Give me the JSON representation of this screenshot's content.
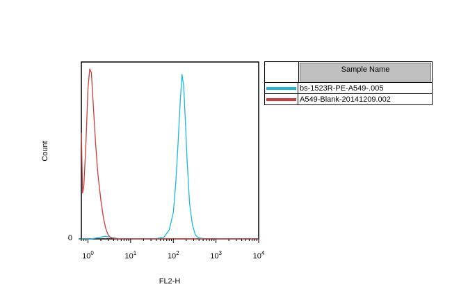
{
  "chart_data": {
    "type": "line",
    "xlabel": "FL2-H",
    "ylabel": "Count",
    "x_scale": "log",
    "xlim": [
      0.7,
      10000
    ],
    "ylim": [
      0,
      100
    ],
    "x_ticks": [
      {
        "base": "10",
        "exp": "0",
        "value": 1
      },
      {
        "base": "10",
        "exp": "1",
        "value": 10
      },
      {
        "base": "10",
        "exp": "2",
        "value": 100
      },
      {
        "base": "10",
        "exp": "3",
        "value": 1000
      },
      {
        "base": "10",
        "exp": "4",
        "value": 10000
      }
    ],
    "y_ticks": [
      {
        "label": "0",
        "value": 0
      }
    ],
    "grid": false,
    "legend_position": "right",
    "legend_header": "Sample Name",
    "series": [
      {
        "name": "bs-1523R-PE-A549-.005",
        "color": "#1ab8e0",
        "x": [
          0.7,
          1.2,
          1.6,
          2.0,
          2.5,
          3.0,
          4.0,
          6.0,
          10,
          20,
          40,
          60,
          80,
          100,
          115,
          130,
          145,
          160,
          175,
          190,
          210,
          240,
          280,
          330,
          400,
          600,
          1000,
          3000,
          10000
        ],
        "y": [
          0,
          0,
          0.5,
          1.0,
          1.5,
          1.2,
          0.5,
          0,
          0,
          0,
          0.2,
          1.0,
          5,
          15,
          33,
          55,
          78,
          93,
          86,
          68,
          45,
          20,
          8,
          2,
          0.5,
          0,
          0,
          0,
          0
        ]
      },
      {
        "name": "A549-Blank-20141209.002",
        "color": "#d03a3a",
        "x": [
          0.7,
          0.75,
          0.8,
          0.9,
          1.0,
          1.1,
          1.2,
          1.3,
          1.5,
          1.7,
          2.0,
          2.3,
          2.6,
          3.0,
          3.5,
          5,
          10,
          100,
          1000,
          10000
        ],
        "y": [
          60,
          26,
          30,
          55,
          85,
          96,
          94,
          80,
          55,
          37,
          22,
          12,
          6,
          2,
          0.5,
          0,
          0,
          0,
          0,
          0
        ]
      }
    ]
  }
}
